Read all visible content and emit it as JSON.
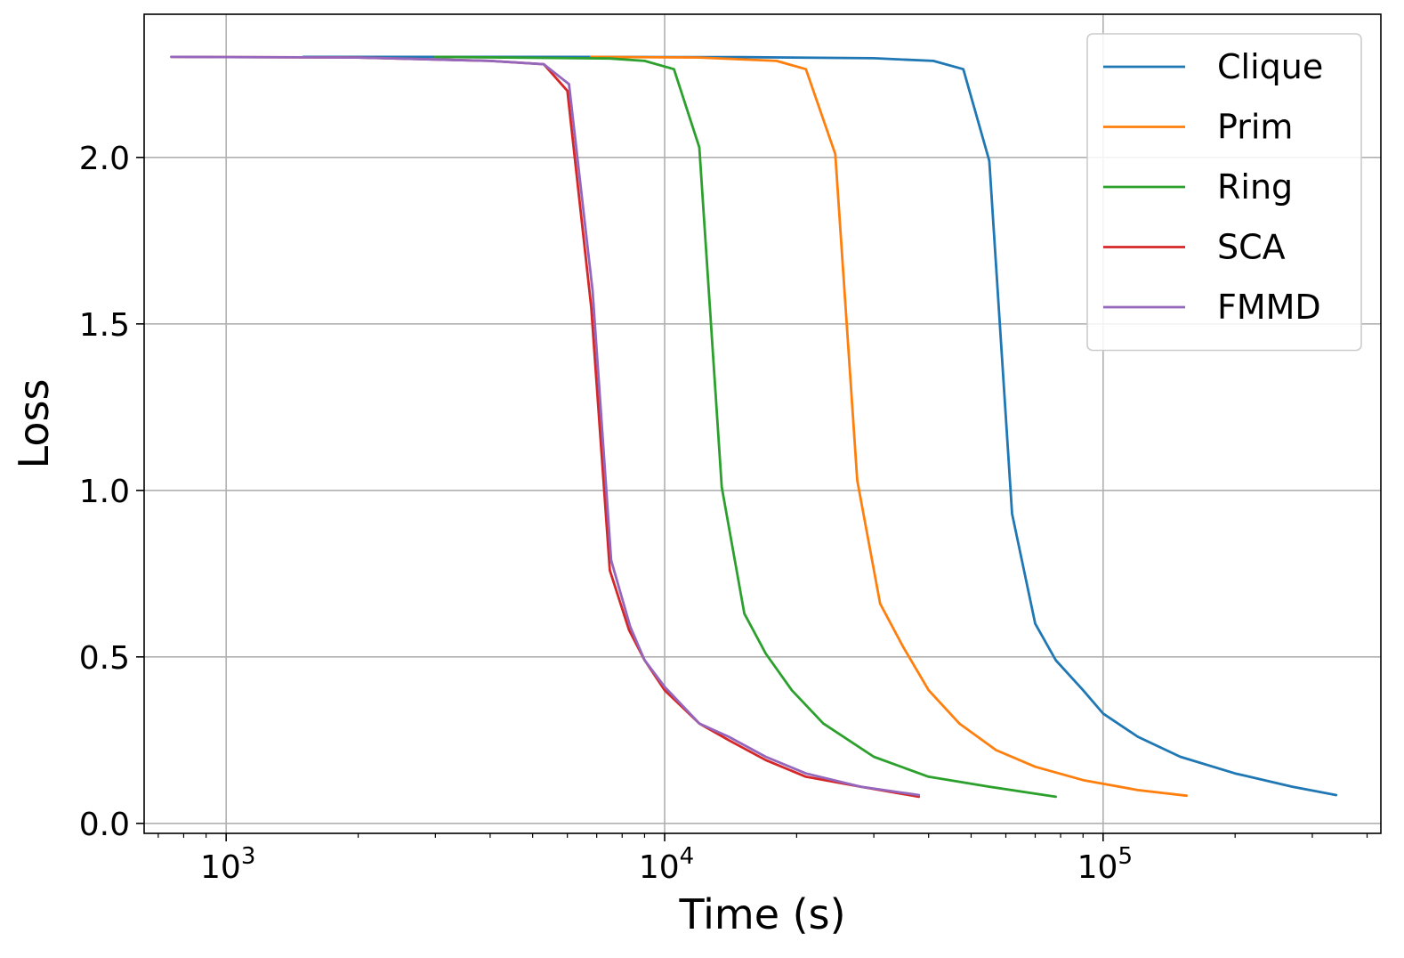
{
  "chart_data": {
    "type": "line",
    "title": "",
    "xlabel": "Time (s)",
    "ylabel": "Loss",
    "x_scale": "log",
    "xlim": [
      650,
      430000
    ],
    "ylim": [
      -0.03,
      2.43
    ],
    "x_ticks": [
      {
        "value": 1000,
        "base": "10",
        "exp": "3"
      },
      {
        "value": 10000,
        "base": "10",
        "exp": "4"
      },
      {
        "value": 100000,
        "base": "10",
        "exp": "5"
      }
    ],
    "y_ticks": [
      {
        "value": 0.0,
        "label": "0.0"
      },
      {
        "value": 0.5,
        "label": "0.5"
      },
      {
        "value": 1.0,
        "label": "1.0"
      },
      {
        "value": 1.5,
        "label": "1.5"
      },
      {
        "value": 2.0,
        "label": "2.0"
      }
    ],
    "grid": true,
    "legend_position": "top-right",
    "series": [
      {
        "name": "Clique",
        "color": "#1f77b4",
        "points": [
          [
            1500,
            2.302
          ],
          [
            5000,
            2.302
          ],
          [
            15000,
            2.301
          ],
          [
            30000,
            2.298
          ],
          [
            41000,
            2.29
          ],
          [
            48000,
            2.265
          ],
          [
            55000,
            1.99
          ],
          [
            62000,
            0.93
          ],
          [
            70000,
            0.6
          ],
          [
            78000,
            0.49
          ],
          [
            90000,
            0.4
          ],
          [
            100000,
            0.33
          ],
          [
            120000,
            0.26
          ],
          [
            150000,
            0.2
          ],
          [
            200000,
            0.15
          ],
          [
            270000,
            0.11
          ],
          [
            340000,
            0.085
          ]
        ]
      },
      {
        "name": "Prim",
        "color": "#ff7f0e",
        "points": [
          [
            6800,
            2.302
          ],
          [
            12000,
            2.3
          ],
          [
            18000,
            2.29
          ],
          [
            21000,
            2.265
          ],
          [
            24500,
            2.01
          ],
          [
            27500,
            1.03
          ],
          [
            31000,
            0.66
          ],
          [
            35000,
            0.53
          ],
          [
            40000,
            0.4
          ],
          [
            47000,
            0.3
          ],
          [
            57000,
            0.22
          ],
          [
            70000,
            0.17
          ],
          [
            90000,
            0.13
          ],
          [
            120000,
            0.1
          ],
          [
            155000,
            0.083
          ]
        ]
      },
      {
        "name": "Ring",
        "color": "#2ca02c",
        "points": [
          [
            3000,
            2.302
          ],
          [
            7500,
            2.297
          ],
          [
            9000,
            2.29
          ],
          [
            10500,
            2.265
          ],
          [
            12000,
            2.03
          ],
          [
            13500,
            1.01
          ],
          [
            15200,
            0.63
          ],
          [
            17000,
            0.51
          ],
          [
            19500,
            0.4
          ],
          [
            23000,
            0.3
          ],
          [
            30000,
            0.2
          ],
          [
            40000,
            0.14
          ],
          [
            55000,
            0.11
          ],
          [
            78000,
            0.08
          ]
        ]
      },
      {
        "name": "SCA",
        "color": "#d62728",
        "points": [
          [
            750,
            2.302
          ],
          [
            2000,
            2.3
          ],
          [
            4000,
            2.29
          ],
          [
            5300,
            2.28
          ],
          [
            6000,
            2.2
          ],
          [
            6800,
            1.55
          ],
          [
            7500,
            0.76
          ],
          [
            8300,
            0.58
          ],
          [
            9000,
            0.49
          ],
          [
            10000,
            0.4
          ],
          [
            12000,
            0.3
          ],
          [
            14000,
            0.25
          ],
          [
            17000,
            0.19
          ],
          [
            21000,
            0.14
          ],
          [
            28000,
            0.11
          ],
          [
            38000,
            0.08
          ]
        ]
      },
      {
        "name": "FMMD",
        "color": "#9467bd",
        "points": [
          [
            750,
            2.302
          ],
          [
            2000,
            2.3
          ],
          [
            4000,
            2.29
          ],
          [
            5300,
            2.28
          ],
          [
            6050,
            2.22
          ],
          [
            6850,
            1.6
          ],
          [
            7550,
            0.79
          ],
          [
            8350,
            0.59
          ],
          [
            9000,
            0.49
          ],
          [
            10000,
            0.41
          ],
          [
            12000,
            0.3
          ],
          [
            14000,
            0.26
          ],
          [
            17000,
            0.2
          ],
          [
            21000,
            0.15
          ],
          [
            28000,
            0.11
          ],
          [
            38000,
            0.085
          ]
        ]
      }
    ]
  }
}
